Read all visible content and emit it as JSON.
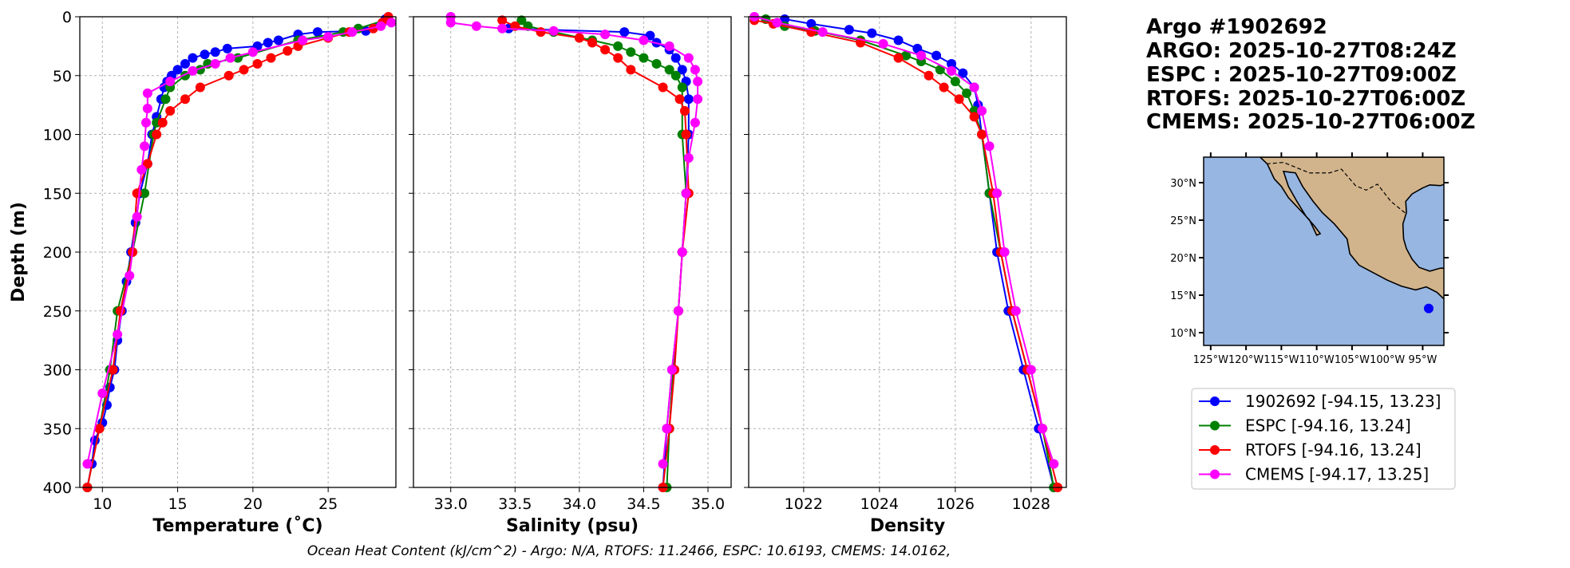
{
  "title_lines": [
    "Argo #1902692",
    "ARGO: 2025-10-27T08:24Z",
    "ESPC : 2025-10-27T09:00Z",
    "RTOFS: 2025-10-27T06:00Z",
    "CMEMS: 2025-10-27T06:00Z"
  ],
  "ohc_text": "Ocean Heat Content (kJ/cm^2) - Argo: N/A,  RTOFS: 11.2466,  ESPC: 10.6193,  CMEMS: 14.0162,",
  "colors": {
    "argo": "#0000ff",
    "espc": "#008000",
    "rtofs": "#ff0000",
    "cmems": "#ff00ff"
  },
  "legend": [
    {
      "label": "1902692 [-94.15, 13.23]",
      "key": "argo"
    },
    {
      "label": "ESPC [-94.16, 13.24]",
      "key": "espc"
    },
    {
      "label": "RTOFS [-94.16, 13.24]",
      "key": "rtofs"
    },
    {
      "label": "CMEMS [-94.17, 13.25]",
      "key": "cmems"
    }
  ],
  "map": {
    "lon_ticks": [
      "125°W",
      "120°W",
      "115°W",
      "110°W",
      "105°W",
      "100°W",
      "95°W"
    ],
    "lon_values": [
      -125,
      -120,
      -115,
      -110,
      -105,
      -100,
      -95
    ],
    "lat_ticks": [
      "10°N",
      "15°N",
      "20°N",
      "25°N",
      "30°N"
    ],
    "lat_values": [
      10,
      15,
      20,
      25,
      30
    ],
    "lon_range": [
      -126,
      -92
    ],
    "lat_range": [
      8.3,
      33.4
    ],
    "float_position": [
      -94.15,
      13.23
    ],
    "land_color": "#d2b48c",
    "ocean_color": "#97b6e1"
  },
  "chart_data": [
    {
      "type": "line",
      "xlabel": "Temperature (˚C)",
      "ylabel": "Depth (m)",
      "xlim": [
        8.5,
        29.5
      ],
      "ylim": [
        400,
        0
      ],
      "grid": true,
      "xticks": [
        10,
        15,
        20,
        25
      ],
      "xtick_labels": [
        "10",
        "15",
        "20",
        "25"
      ],
      "yticks": [
        0,
        50,
        100,
        150,
        200,
        250,
        300,
        350,
        400
      ],
      "ytick_labels": [
        "0",
        "50",
        "100",
        "150",
        "200",
        "250",
        "300",
        "350",
        "400"
      ],
      "series": [
        {
          "name": "1902692",
          "key": "argo",
          "points": [
            [
              28.8,
              2
            ],
            [
              27.5,
              12
            ],
            [
              24.3,
              13
            ],
            [
              23,
              15
            ],
            [
              21.7,
              20
            ],
            [
              21,
              22
            ],
            [
              20.3,
              25
            ],
            [
              18.3,
              27
            ],
            [
              17.5,
              30
            ],
            [
              16.8,
              32
            ],
            [
              16,
              35
            ],
            [
              15.5,
              40
            ],
            [
              15,
              45
            ],
            [
              14.6,
              50
            ],
            [
              14.3,
              55
            ],
            [
              14.1,
              60
            ],
            [
              13.9,
              70
            ],
            [
              13.6,
              85
            ],
            [
              13.3,
              100
            ],
            [
              13,
              125
            ],
            [
              12.5,
              150
            ],
            [
              12.2,
              175
            ],
            [
              11.9,
              200
            ],
            [
              11.6,
              225
            ],
            [
              11.3,
              250
            ],
            [
              11,
              275
            ],
            [
              10.8,
              300
            ],
            [
              10.5,
              315
            ],
            [
              10.3,
              330
            ],
            [
              10,
              345
            ],
            [
              9.5,
              360
            ],
            [
              9.3,
              380
            ],
            [
              9,
              400
            ]
          ]
        },
        {
          "name": "ESPC",
          "key": "espc",
          "points": [
            [
              29,
              2
            ],
            [
              27,
              10
            ],
            [
              26,
              13
            ],
            [
              23,
              20
            ],
            [
              19,
              35
            ],
            [
              17,
              40
            ],
            [
              16.5,
              45
            ],
            [
              15.5,
              50
            ],
            [
              14.5,
              60
            ],
            [
              14.2,
              70
            ],
            [
              13.6,
              90
            ],
            [
              13.4,
              100
            ],
            [
              12.8,
              150
            ],
            [
              12,
              200
            ],
            [
              11,
              250
            ],
            [
              10.5,
              300
            ],
            [
              9.8,
              350
            ],
            [
              9,
              400
            ]
          ]
        },
        {
          "name": "RTOFS",
          "key": "rtofs",
          "points": [
            [
              29,
              0
            ],
            [
              28.6,
              5
            ],
            [
              28,
              10
            ],
            [
              26.4,
              13
            ],
            [
              25,
              18
            ],
            [
              23,
              25
            ],
            [
              22.3,
              29
            ],
            [
              21.2,
              35
            ],
            [
              20.3,
              40
            ],
            [
              19.4,
              45
            ],
            [
              18.4,
              50
            ],
            [
              16.5,
              60
            ],
            [
              15.5,
              70
            ],
            [
              14.5,
              80
            ],
            [
              14,
              90
            ],
            [
              13.6,
              100
            ],
            [
              13,
              125
            ],
            [
              12.3,
              150
            ],
            [
              12,
              200
            ],
            [
              11.2,
              250
            ],
            [
              10.7,
              300
            ],
            [
              9.8,
              350
            ],
            [
              9,
              400
            ]
          ]
        },
        {
          "name": "CMEMS",
          "key": "cmems",
          "points": [
            [
              29.2,
              5
            ],
            [
              28.5,
              8
            ],
            [
              26.6,
              13
            ],
            [
              25,
              17
            ],
            [
              23.3,
              20
            ],
            [
              20,
              30
            ],
            [
              18.5,
              35
            ],
            [
              17.5,
              40
            ],
            [
              16,
              46
            ],
            [
              14.5,
              55
            ],
            [
              13,
              65
            ],
            [
              13,
              78
            ],
            [
              12.9,
              90
            ],
            [
              12.8,
              110
            ],
            [
              12.6,
              130
            ],
            [
              12.3,
              170
            ],
            [
              11.8,
              220
            ],
            [
              11,
              270
            ],
            [
              10,
              320
            ],
            [
              9,
              380
            ]
          ]
        }
      ]
    },
    {
      "type": "line",
      "xlabel": "Salinity (psu)",
      "ylabel": "",
      "xlim": [
        32.71,
        35.18
      ],
      "ylim": [
        400,
        0
      ],
      "grid": true,
      "xticks": [
        33.0,
        33.5,
        34.0,
        34.5,
        35.0
      ],
      "xtick_labels": [
        "33.0",
        "33.5",
        "34.0",
        "34.5",
        "35.0"
      ],
      "yticks": [
        0,
        50,
        100,
        150,
        200,
        250,
        300,
        350,
        400
      ],
      "series": [
        {
          "name": "1902692",
          "key": "argo",
          "points": [
            [
              33.45,
              10
            ],
            [
              34.35,
              13
            ],
            [
              34.55,
              16
            ],
            [
              34.6,
              22
            ],
            [
              34.7,
              28
            ],
            [
              34.75,
              35
            ],
            [
              34.8,
              45
            ],
            [
              34.83,
              55
            ],
            [
              34.85,
              70
            ],
            [
              34.85,
              100
            ],
            [
              34.83,
              150
            ],
            [
              34.8,
              200
            ],
            [
              34.77,
              250
            ],
            [
              34.72,
              300
            ],
            [
              34.68,
              350
            ],
            [
              34.65,
              400
            ]
          ]
        },
        {
          "name": "ESPC",
          "key": "espc",
          "points": [
            [
              33.55,
              3
            ],
            [
              33.6,
              8
            ],
            [
              33.8,
              13
            ],
            [
              34.1,
              20
            ],
            [
              34.3,
              25
            ],
            [
              34.4,
              30
            ],
            [
              34.5,
              35
            ],
            [
              34.6,
              40
            ],
            [
              34.7,
              45
            ],
            [
              34.75,
              50
            ],
            [
              34.8,
              60
            ],
            [
              34.8,
              100
            ],
            [
              34.83,
              150
            ],
            [
              34.8,
              200
            ],
            [
              34.77,
              250
            ],
            [
              34.73,
              300
            ],
            [
              34.7,
              350
            ],
            [
              34.68,
              400
            ]
          ]
        },
        {
          "name": "RTOFS",
          "key": "rtofs",
          "points": [
            [
              33.4,
              3
            ],
            [
              33.5,
              8
            ],
            [
              33.7,
              13
            ],
            [
              34.0,
              18
            ],
            [
              34.1,
              22
            ],
            [
              34.2,
              28
            ],
            [
              34.3,
              35
            ],
            [
              34.4,
              45
            ],
            [
              34.65,
              60
            ],
            [
              34.78,
              70
            ],
            [
              34.82,
              80
            ],
            [
              34.83,
              100
            ],
            [
              34.85,
              150
            ],
            [
              34.8,
              200
            ],
            [
              34.77,
              250
            ],
            [
              34.74,
              300
            ],
            [
              34.7,
              350
            ],
            [
              34.65,
              400
            ]
          ]
        },
        {
          "name": "CMEMS",
          "key": "cmems",
          "points": [
            [
              33.0,
              0
            ],
            [
              33.0,
              5
            ],
            [
              33.2,
              8
            ],
            [
              33.4,
              10
            ],
            [
              33.8,
              12
            ],
            [
              34.2,
              15
            ],
            [
              34.5,
              20
            ],
            [
              34.7,
              25
            ],
            [
              34.85,
              35
            ],
            [
              34.9,
              45
            ],
            [
              34.92,
              55
            ],
            [
              34.92,
              70
            ],
            [
              34.9,
              90
            ],
            [
              34.85,
              120
            ],
            [
              34.83,
              150
            ],
            [
              34.8,
              200
            ],
            [
              34.77,
              250
            ],
            [
              34.72,
              300
            ],
            [
              34.68,
              350
            ],
            [
              34.65,
              380
            ]
          ]
        }
      ]
    },
    {
      "type": "line",
      "xlabel": "Density",
      "ylabel": "",
      "xlim": [
        1020.55,
        1028.93
      ],
      "ylim": [
        400,
        0
      ],
      "grid": true,
      "xticks": [
        1022,
        1024,
        1026,
        1028
      ],
      "xtick_labels": [
        "1022",
        "1024",
        "1026",
        "1028"
      ],
      "yticks": [
        0,
        50,
        100,
        150,
        200,
        250,
        300,
        350,
        400
      ],
      "series": [
        {
          "name": "1902692",
          "key": "argo",
          "points": [
            [
              1021.5,
              2
            ],
            [
              1022.2,
              6
            ],
            [
              1023.2,
              11
            ],
            [
              1023.8,
              14
            ],
            [
              1024.5,
              20
            ],
            [
              1025,
              27
            ],
            [
              1025.5,
              33
            ],
            [
              1025.9,
              40
            ],
            [
              1026.2,
              48
            ],
            [
              1026.5,
              60
            ],
            [
              1026.6,
              75
            ],
            [
              1026.7,
              100
            ],
            [
              1026.9,
              150
            ],
            [
              1027.1,
              200
            ],
            [
              1027.4,
              250
            ],
            [
              1027.8,
              300
            ],
            [
              1028.2,
              350
            ],
            [
              1028.6,
              400
            ]
          ]
        },
        {
          "name": "ESPC",
          "key": "espc",
          "points": [
            [
              1021.0,
              2
            ],
            [
              1021.5,
              8
            ],
            [
              1022.3,
              12
            ],
            [
              1023.5,
              20
            ],
            [
              1024.7,
              33
            ],
            [
              1025.1,
              38
            ],
            [
              1025.6,
              45
            ],
            [
              1026.0,
              55
            ],
            [
              1026.3,
              65
            ],
            [
              1026.5,
              80
            ],
            [
              1026.7,
              100
            ],
            [
              1026.9,
              150
            ],
            [
              1027.2,
              200
            ],
            [
              1027.5,
              250
            ],
            [
              1027.9,
              300
            ],
            [
              1028.3,
              350
            ],
            [
              1028.6,
              400
            ]
          ]
        },
        {
          "name": "RTOFS",
          "key": "rtofs",
          "points": [
            [
              1020.7,
              3
            ],
            [
              1021.2,
              6
            ],
            [
              1022.2,
              13
            ],
            [
              1023.5,
              22
            ],
            [
              1024.5,
              35
            ],
            [
              1025.3,
              50
            ],
            [
              1025.7,
              60
            ],
            [
              1026.1,
              70
            ],
            [
              1026.5,
              85
            ],
            [
              1026.7,
              100
            ],
            [
              1027,
              150
            ],
            [
              1027.2,
              200
            ],
            [
              1027.5,
              250
            ],
            [
              1027.9,
              300
            ],
            [
              1028.3,
              350
            ],
            [
              1028.7,
              400
            ]
          ]
        },
        {
          "name": "CMEMS",
          "key": "cmems",
          "points": [
            [
              1020.7,
              0
            ],
            [
              1021.3,
              5
            ],
            [
              1022.5,
              13
            ],
            [
              1024.1,
              23
            ],
            [
              1025.1,
              33
            ],
            [
              1025.9,
              46
            ],
            [
              1026.5,
              60
            ],
            [
              1026.7,
              80
            ],
            [
              1026.9,
              110
            ],
            [
              1027.1,
              150
            ],
            [
              1027.3,
              200
            ],
            [
              1027.6,
              250
            ],
            [
              1028,
              300
            ],
            [
              1028.3,
              350
            ],
            [
              1028.6,
              380
            ]
          ]
        }
      ]
    }
  ]
}
